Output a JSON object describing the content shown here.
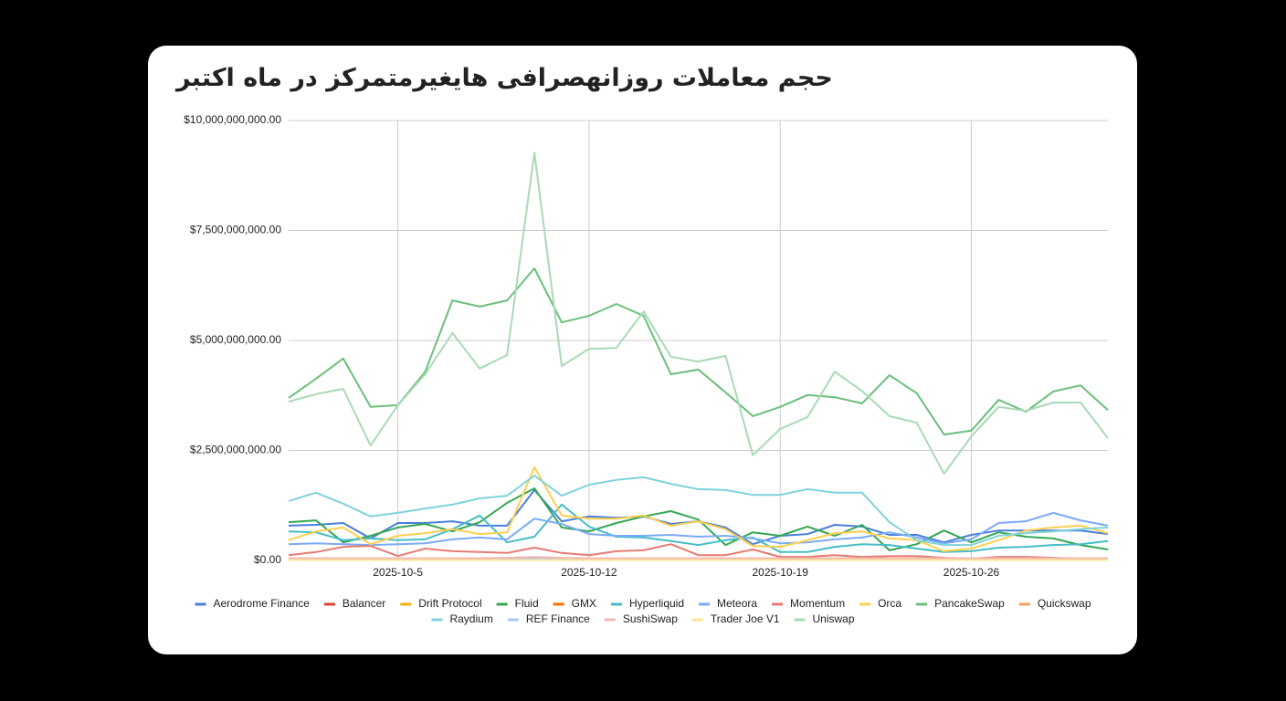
{
  "chart_data": {
    "type": "line",
    "title": "حجم معاملات روزانهصرافی هایغیرمتمرکز در ماه اکتبر",
    "x": [
      "2025-10-1",
      "2025-10-2",
      "2025-10-3",
      "2025-10-4",
      "2025-10-5",
      "2025-10-6",
      "2025-10-7",
      "2025-10-8",
      "2025-10-9",
      "2025-10-10",
      "2025-10-11",
      "2025-10-12",
      "2025-10-13",
      "2025-10-14",
      "2025-10-15",
      "2025-10-16",
      "2025-10-17",
      "2025-10-18",
      "2025-10-19",
      "2025-10-20",
      "2025-10-21",
      "2025-10-22",
      "2025-10-23",
      "2025-10-24",
      "2025-10-25",
      "2025-10-26",
      "2025-10-27",
      "2025-10-28",
      "2025-10-29",
      "2025-10-30",
      "2025-10-31"
    ],
    "xlim": [
      "2025-10-1",
      "2025-10-31"
    ],
    "xticks": [
      "2025-10-5",
      "2025-10-12",
      "2025-10-19",
      "2025-10-26"
    ],
    "ylim": [
      0,
      10000000000
    ],
    "yticks": [
      {
        "value": 0,
        "label": "$0.00"
      },
      {
        "value": 2500000000,
        "label": "$2,500,000,000.00"
      },
      {
        "value": 5000000000,
        "label": "$5,000,000,000.00"
      },
      {
        "value": 7500000000,
        "label": "$7,500,000,000.00"
      },
      {
        "value": 10000000000,
        "label": "$10,000,000,000.00"
      }
    ],
    "grid": true,
    "legend": "bottom",
    "series": [
      {
        "name": "Aerodrome Finance",
        "color": "#4a7fd9",
        "values": [
          790000000.0,
          810000000.0,
          850000000.0,
          500000000.0,
          850000000.0,
          850000000.0,
          890000000.0,
          790000000.0,
          790000000.0,
          1600000000.0,
          890000000.0,
          1000000000.0,
          970000000.0,
          1000000000.0,
          830000000.0,
          890000000.0,
          750000000.0,
          370000000.0,
          560000000.0,
          600000000.0,
          810000000.0,
          770000000.0,
          580000000.0,
          580000000.0,
          410000000.0,
          580000000.0,
          680000000.0,
          680000000.0,
          680000000.0,
          680000000.0,
          600000000.0
        ]
      },
      {
        "name": "Balancer",
        "color": "#db4437",
        "values": [
          20000000.0,
          20000000.0,
          20000000.0,
          20000000.0,
          20000000.0,
          20000000.0,
          20000000.0,
          20000000.0,
          20000000.0,
          30000000.0,
          20000000.0,
          20000000.0,
          20000000.0,
          20000000.0,
          20000000.0,
          20000000.0,
          20000000.0,
          20000000.0,
          20000000.0,
          20000000.0,
          20000000.0,
          20000000.0,
          20000000.0,
          20000000.0,
          20000000.0,
          20000000.0,
          20000000.0,
          20000000.0,
          20000000.0,
          20000000.0,
          20000000.0
        ]
      },
      {
        "name": "Drift Protocol",
        "color": "#f4b400",
        "values": [
          30000000.0,
          30000000.0,
          30000000.0,
          30000000.0,
          30000000.0,
          30000000.0,
          30000000.0,
          30000000.0,
          30000000.0,
          50000000.0,
          30000000.0,
          30000000.0,
          30000000.0,
          30000000.0,
          30000000.0,
          30000000.0,
          30000000.0,
          30000000.0,
          30000000.0,
          30000000.0,
          30000000.0,
          30000000.0,
          30000000.0,
          30000000.0,
          30000000.0,
          30000000.0,
          30000000.0,
          30000000.0,
          30000000.0,
          30000000.0,
          30000000.0
        ]
      },
      {
        "name": "Fluid",
        "color": "#34a853",
        "values": [
          870000000.0,
          910000000.0,
          410000000.0,
          560000000.0,
          750000000.0,
          830000000.0,
          660000000.0,
          870000000.0,
          1310000000.0,
          1640000000.0,
          750000000.0,
          660000000.0,
          850000000.0,
          1000000000.0,
          1120000000.0,
          930000000.0,
          350000000.0,
          640000000.0,
          560000000.0,
          770000000.0,
          560000000.0,
          810000000.0,
          230000000.0,
          370000000.0,
          680000000.0,
          410000000.0,
          640000000.0,
          540000000.0,
          500000000.0,
          350000000.0,
          250000000.0
        ]
      },
      {
        "name": "GMX",
        "color": "#ff6d00",
        "values": [
          10000000.0,
          10000000.0,
          10000000.0,
          10000000.0,
          10000000.0,
          10000000.0,
          10000000.0,
          10000000.0,
          10000000.0,
          20000000.0,
          10000000.0,
          10000000.0,
          10000000.0,
          10000000.0,
          10000000.0,
          10000000.0,
          10000000.0,
          10000000.0,
          10000000.0,
          10000000.0,
          10000000.0,
          10000000.0,
          10000000.0,
          10000000.0,
          10000000.0,
          10000000.0,
          10000000.0,
          10000000.0,
          10000000.0,
          10000000.0,
          10000000.0
        ]
      },
      {
        "name": "Hyperliquid",
        "color": "#46bdc6",
        "values": [
          660000000.0,
          640000000.0,
          460000000.0,
          500000000.0,
          460000000.0,
          480000000.0,
          710000000.0,
          1020000000.0,
          410000000.0,
          540000000.0,
          1270000000.0,
          770000000.0,
          540000000.0,
          520000000.0,
          440000000.0,
          350000000.0,
          460000000.0,
          520000000.0,
          190000000.0,
          190000000.0,
          310000000.0,
          370000000.0,
          350000000.0,
          270000000.0,
          190000000.0,
          210000000.0,
          290000000.0,
          310000000.0,
          350000000.0,
          370000000.0,
          440000000.0
        ]
      },
      {
        "name": "Meteora",
        "color": "#7baaf7",
        "values": [
          370000000.0,
          390000000.0,
          370000000.0,
          350000000.0,
          370000000.0,
          390000000.0,
          480000000.0,
          520000000.0,
          480000000.0,
          950000000.0,
          830000000.0,
          600000000.0,
          560000000.0,
          560000000.0,
          580000000.0,
          540000000.0,
          560000000.0,
          500000000.0,
          390000000.0,
          410000000.0,
          480000000.0,
          520000000.0,
          640000000.0,
          520000000.0,
          390000000.0,
          480000000.0,
          850000000.0,
          890000000.0,
          1080000000.0,
          910000000.0,
          790000000.0
        ]
      },
      {
        "name": "Momentum",
        "color": "#e67c73",
        "values": [
          120000000.0,
          190000000.0,
          310000000.0,
          330000000.0,
          100000000.0,
          270000000.0,
          210000000.0,
          190000000.0,
          170000000.0,
          290000000.0,
          170000000.0,
          120000000.0,
          210000000.0,
          230000000.0,
          370000000.0,
          120000000.0,
          120000000.0,
          250000000.0,
          80000000.0,
          80000000.0,
          120000000.0,
          80000000.0,
          100000000.0,
          100000000.0,
          60000000.0,
          40000000.0,
          80000000.0,
          80000000.0,
          60000000.0,
          40000000.0,
          40000000.0
        ]
      },
      {
        "name": "Orca",
        "color": "#fcd04f",
        "values": [
          460000000.0,
          660000000.0,
          750000000.0,
          370000000.0,
          560000000.0,
          620000000.0,
          710000000.0,
          600000000.0,
          640000000.0,
          2120000000.0,
          1020000000.0,
          950000000.0,
          950000000.0,
          1020000000.0,
          790000000.0,
          890000000.0,
          710000000.0,
          330000000.0,
          310000000.0,
          460000000.0,
          620000000.0,
          660000000.0,
          500000000.0,
          460000000.0,
          210000000.0,
          270000000.0,
          460000000.0,
          680000000.0,
          750000000.0,
          790000000.0,
          620000000.0
        ]
      },
      {
        "name": "PancakeSwap",
        "color": "#6bbf7b",
        "values": [
          3690000000.0,
          4130000000.0,
          4590000000.0,
          3490000000.0,
          3530000000.0,
          4290000000.0,
          5910000000.0,
          5770000000.0,
          5910000000.0,
          6640000000.0,
          5410000000.0,
          5560000000.0,
          5830000000.0,
          5560000000.0,
          4230000000.0,
          4340000000.0,
          3820000000.0,
          3280000000.0,
          3490000000.0,
          3760000000.0,
          3710000000.0,
          3570000000.0,
          4210000000.0,
          3800000000.0,
          2860000000.0,
          2950000000.0,
          3650000000.0,
          3380000000.0,
          3840000000.0,
          3980000000.0,
          3420000000.0
        ]
      },
      {
        "name": "Quickswap",
        "color": "#f6a05a",
        "values": [
          10000000.0,
          10000000.0,
          10000000.0,
          10000000.0,
          10000000.0,
          10000000.0,
          10000000.0,
          10000000.0,
          10000000.0,
          10000000.0,
          10000000.0,
          10000000.0,
          10000000.0,
          10000000.0,
          10000000.0,
          10000000.0,
          10000000.0,
          10000000.0,
          10000000.0,
          10000000.0,
          10000000.0,
          10000000.0,
          10000000.0,
          10000000.0,
          10000000.0,
          10000000.0,
          10000000.0,
          10000000.0,
          10000000.0,
          10000000.0,
          10000000.0
        ]
      },
      {
        "name": "Raydium",
        "color": "#7fd3d9",
        "values": [
          1350000000.0,
          1540000000.0,
          1290000000.0,
          1000000000.0,
          1080000000.0,
          1180000000.0,
          1270000000.0,
          1410000000.0,
          1470000000.0,
          1930000000.0,
          1470000000.0,
          1720000000.0,
          1830000000.0,
          1890000000.0,
          1740000000.0,
          1620000000.0,
          1600000000.0,
          1490000000.0,
          1490000000.0,
          1620000000.0,
          1540000000.0,
          1540000000.0,
          870000000.0,
          460000000.0,
          350000000.0,
          350000000.0,
          560000000.0,
          620000000.0,
          660000000.0,
          710000000.0,
          750000000.0
        ]
      },
      {
        "name": "REF Finance",
        "color": "#a9c8f5",
        "values": [
          30000000.0,
          30000000.0,
          30000000.0,
          30000000.0,
          30000000.0,
          30000000.0,
          30000000.0,
          30000000.0,
          30000000.0,
          40000000.0,
          30000000.0,
          30000000.0,
          30000000.0,
          30000000.0,
          30000000.0,
          30000000.0,
          30000000.0,
          30000000.0,
          30000000.0,
          30000000.0,
          30000000.0,
          30000000.0,
          30000000.0,
          30000000.0,
          30000000.0,
          30000000.0,
          30000000.0,
          30000000.0,
          30000000.0,
          30000000.0,
          30000000.0
        ]
      },
      {
        "name": "SushiSwap",
        "color": "#f2b8b3",
        "values": [
          50000000.0,
          50000000.0,
          50000000.0,
          50000000.0,
          50000000.0,
          50000000.0,
          50000000.0,
          50000000.0,
          60000000.0,
          80000000.0,
          60000000.0,
          50000000.0,
          50000000.0,
          50000000.0,
          50000000.0,
          50000000.0,
          50000000.0,
          50000000.0,
          50000000.0,
          50000000.0,
          50000000.0,
          50000000.0,
          50000000.0,
          50000000.0,
          50000000.0,
          50000000.0,
          50000000.0,
          50000000.0,
          50000000.0,
          50000000.0,
          50000000.0
        ]
      },
      {
        "name": "Trader Joe V1",
        "color": "#fde49a",
        "values": [
          10000000.0,
          10000000.0,
          10000000.0,
          10000000.0,
          10000000.0,
          10000000.0,
          10000000.0,
          10000000.0,
          10000000.0,
          10000000.0,
          10000000.0,
          10000000.0,
          10000000.0,
          10000000.0,
          10000000.0,
          10000000.0,
          10000000.0,
          10000000.0,
          10000000.0,
          10000000.0,
          10000000.0,
          10000000.0,
          10000000.0,
          10000000.0,
          10000000.0,
          10000000.0,
          10000000.0,
          10000000.0,
          10000000.0,
          10000000.0,
          10000000.0
        ]
      },
      {
        "name": "Uniswap",
        "color": "#a8dab5",
        "values": [
          3610000000.0,
          3780000000.0,
          3900000000.0,
          2610000000.0,
          3530000000.0,
          4230000000.0,
          5170000000.0,
          4360000000.0,
          4670000000.0,
          9270000000.0,
          4420000000.0,
          4810000000.0,
          4830000000.0,
          5660000000.0,
          4630000000.0,
          4520000000.0,
          4650000000.0,
          2390000000.0,
          2990000000.0,
          3260000000.0,
          4290000000.0,
          3850000000.0,
          3280000000.0,
          3130000000.0,
          1970000000.0,
          2820000000.0,
          3490000000.0,
          3400000000.0,
          3590000000.0,
          3590000000.0,
          2780000000.0
        ]
      }
    ]
  }
}
